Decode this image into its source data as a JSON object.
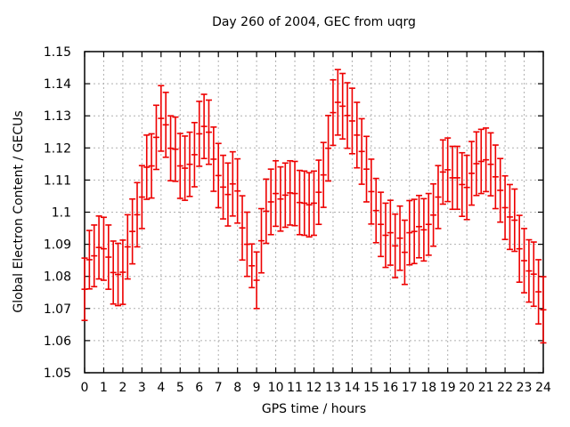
{
  "chart_data": {
    "type": "scatter",
    "style": "yerrorbars",
    "title": "Day 260 of 2004, GEC from uqrg",
    "xlabel": "GPS time / hours",
    "ylabel": "Global Electron Content / GECUs",
    "xlim": [
      0,
      24
    ],
    "ylim": [
      1.05,
      1.15
    ],
    "xtick_step": 1,
    "ytick_step": 0.01,
    "grid": true,
    "legend": "none",
    "series_color": "#ee0000",
    "grid_color": "#b0b0b0",
    "border_color": "#000000",
    "x": [
      0,
      0.25,
      0.5,
      0.75,
      1,
      1.25,
      1.5,
      1.75,
      2,
      2.25,
      2.5,
      2.75,
      3,
      3.25,
      3.5,
      3.75,
      4,
      4.25,
      4.5,
      4.75,
      5,
      5.25,
      5.5,
      5.75,
      6,
      6.25,
      6.5,
      6.75,
      7,
      7.25,
      7.5,
      7.75,
      8,
      8.25,
      8.5,
      8.75,
      9,
      9.25,
      9.5,
      9.75,
      10,
      10.25,
      10.5,
      10.75,
      11,
      11.25,
      11.5,
      11.75,
      12,
      12.25,
      12.5,
      12.75,
      13,
      13.25,
      13.5,
      13.75,
      14,
      14.25,
      14.5,
      14.75,
      15,
      15.25,
      15.5,
      15.75,
      16,
      16.25,
      16.5,
      16.75,
      17,
      17.25,
      17.5,
      17.75,
      18,
      18.25,
      18.5,
      18.75,
      19,
      19.25,
      19.5,
      19.75,
      20,
      20.25,
      20.5,
      20.75,
      21,
      21.25,
      21.5,
      21.75,
      22,
      22.25,
      22.5,
      22.75,
      23,
      23.25,
      23.5,
      23.75,
      24
    ],
    "y": [
      1.076,
      1.0852,
      1.0864,
      1.089,
      1.0886,
      1.086,
      1.0812,
      1.0806,
      1.0813,
      1.0892,
      1.094,
      1.0992,
      1.1047,
      1.114,
      1.1144,
      1.1233,
      1.1292,
      1.1272,
      1.1199,
      1.1196,
      1.1144,
      1.1137,
      1.1149,
      1.1179,
      1.1244,
      1.1267,
      1.1249,
      1.1165,
      1.1114,
      1.1078,
      1.1055,
      1.1088,
      1.1066,
      1.0951,
      1.09,
      1.0833,
      1.0788,
      1.0911,
      1.1003,
      1.1032,
      1.1058,
      1.1041,
      1.1053,
      1.106,
      1.1058,
      1.103,
      1.1028,
      1.1023,
      1.1028,
      1.1062,
      1.1116,
      1.1199,
      1.131,
      1.1342,
      1.133,
      1.1301,
      1.1284,
      1.124,
      1.1189,
      1.1134,
      1.1064,
      1.1005,
      1.0962,
      1.0928,
      1.0936,
      1.0895,
      1.0919,
      1.0875,
      1.0936,
      1.094,
      1.0955,
      1.0945,
      1.0962,
      1.0991,
      1.1047,
      1.1125,
      1.1132,
      1.1107,
      1.1107,
      1.1086,
      1.1077,
      1.1121,
      1.1151,
      1.1158,
      1.1163,
      1.1149,
      1.111,
      1.1068,
      1.1014,
      1.0985,
      1.0975,
      1.0886,
      1.0849,
      1.0817,
      1.0807,
      1.0752,
      1.0696
    ],
    "yerr": [
      0.0097,
      0.0091,
      0.0096,
      0.0098,
      0.0098,
      0.01,
      0.0098,
      0.0097,
      0.01,
      0.01,
      0.0101,
      0.01,
      0.0098,
      0.01,
      0.01,
      0.01,
      0.0102,
      0.0101,
      0.0101,
      0.01,
      0.0101,
      0.01,
      0.01,
      0.01,
      0.0101,
      0.01,
      0.01,
      0.01,
      0.01,
      0.0099,
      0.0098,
      0.01,
      0.01,
      0.01,
      0.01,
      0.0068,
      0.0088,
      0.01,
      0.01,
      0.0102,
      0.0102,
      0.01,
      0.01,
      0.01,
      0.01,
      0.01,
      0.01,
      0.01,
      0.01,
      0.01,
      0.0101,
      0.0102,
      0.0102,
      0.0102,
      0.0102,
      0.0102,
      0.0102,
      0.0102,
      0.0102,
      0.0102,
      0.0101,
      0.01,
      0.01,
      0.01,
      0.0101,
      0.0099,
      0.01,
      0.01,
      0.01,
      0.01,
      0.0097,
      0.0097,
      0.0096,
      0.0097,
      0.0098,
      0.01,
      0.0099,
      0.0098,
      0.0098,
      0.0099,
      0.01,
      0.0099,
      0.0099,
      0.01,
      0.0099,
      0.0098,
      0.0099,
      0.0099,
      0.0099,
      0.0101,
      0.0097,
      0.0104,
      0.01,
      0.0097,
      0.01,
      0.01,
      0.0103
    ]
  }
}
